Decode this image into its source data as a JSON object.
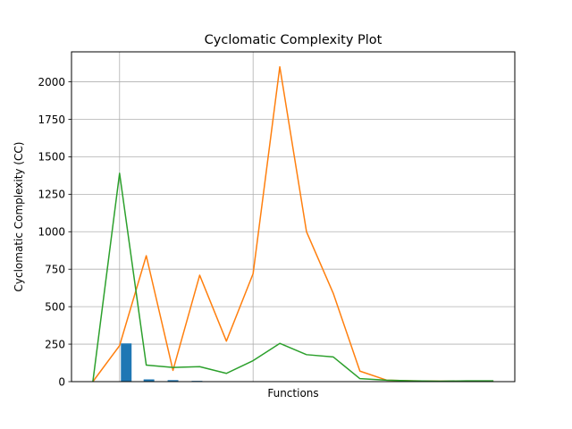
{
  "chart_data": {
    "type": "line",
    "title": "Cyclomatic Complexity Plot",
    "xlabel": "Functions",
    "ylabel": "Cyclomatic Complexity (CC)",
    "ylim": [
      0,
      2200
    ],
    "xlim": [
      -0.8,
      15.8
    ],
    "yticks": [
      0,
      250,
      500,
      750,
      1000,
      1250,
      1500,
      1750,
      2000
    ],
    "ytick_labels": [
      "0",
      "250",
      "500",
      "750",
      "1000",
      "1250",
      "1500",
      "1750",
      "2000"
    ],
    "x_grid_positions": [
      1,
      6
    ],
    "grid": true,
    "legend": "none",
    "x": [
      0,
      1,
      2,
      3,
      4,
      5,
      6,
      7,
      8,
      9,
      10,
      11,
      12,
      13,
      14,
      15
    ],
    "series": [
      {
        "type": "line",
        "color": "#ff7f0e",
        "values": [
          0,
          240,
          840,
          75,
          710,
          270,
          720,
          2100,
          1000,
          590,
          70,
          10,
          5,
          3,
          3,
          3
        ]
      },
      {
        "type": "line",
        "color": "#2ca02c",
        "values": [
          0,
          1390,
          110,
          95,
          100,
          55,
          140,
          255,
          180,
          165,
          20,
          10,
          5,
          3,
          5,
          5
        ]
      },
      {
        "type": "bar",
        "color": "#1f77b4",
        "x": [
          1.25,
          2.1,
          3.0,
          3.9
        ],
        "values": [
          255,
          15,
          10,
          5
        ]
      }
    ]
  }
}
